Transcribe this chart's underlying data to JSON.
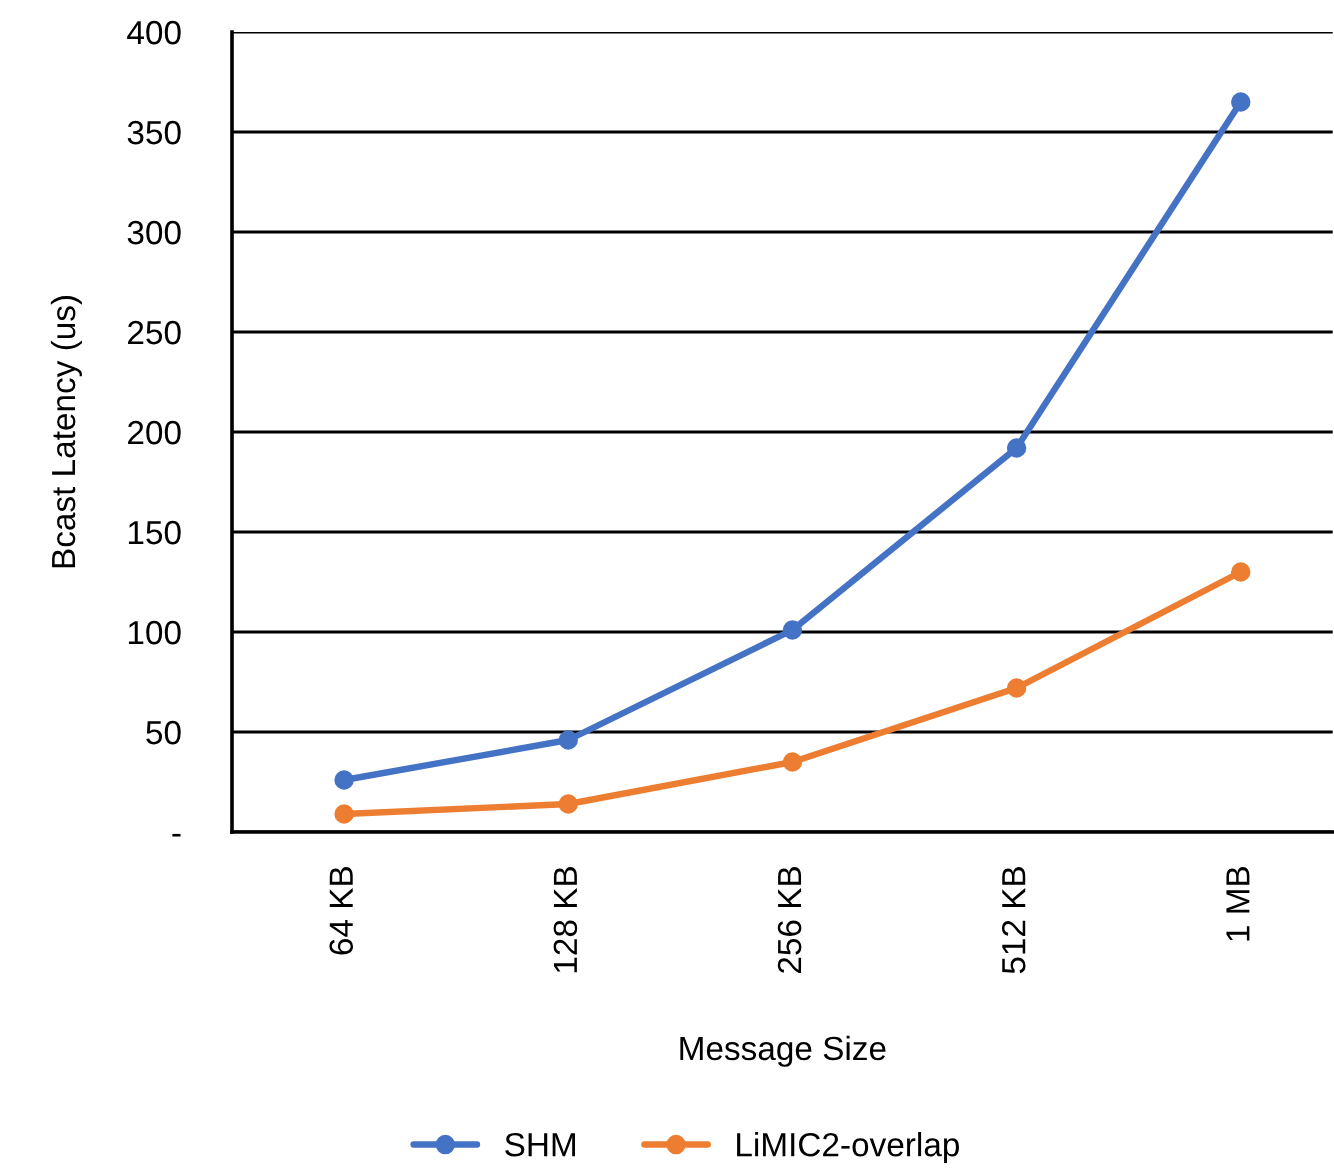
{
  "chart_data": {
    "type": "line",
    "xlabel": "Message Size",
    "ylabel": "Bcast Latency (us)",
    "categories": [
      "64 KB",
      "128 KB",
      "256 KB",
      "512 KB",
      "1 MB"
    ],
    "series": [
      {
        "name": "SHM",
        "color": "#4472c4",
        "values": [
          26,
          46,
          101,
          192,
          365
        ]
      },
      {
        "name": "LiMIC2-overlap",
        "color": "#ed7d31",
        "values": [
          9,
          14,
          35,
          72,
          130
        ]
      }
    ],
    "ylim": [
      0,
      400
    ],
    "yticks": [
      {
        "value": 0,
        "label": "-"
      },
      50,
      100,
      150,
      200,
      250,
      300,
      350,
      400
    ],
    "grid": "y",
    "legend": "bottom",
    "marker": "circle",
    "line_style": "solid"
  }
}
